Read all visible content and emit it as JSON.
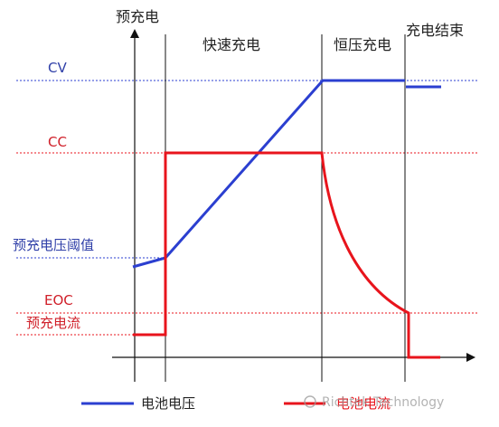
{
  "phases": {
    "precharge": "预充电",
    "fast_charge": "快速充电",
    "constant_voltage": "恒压充电",
    "charge_end": "充电结束"
  },
  "levels": {
    "cv": "CV",
    "cc": "CC",
    "precharge_voltage_threshold": "预充电压阈值",
    "eoc": "EOC",
    "precharge_current": "预充电流"
  },
  "legend": {
    "voltage": "电池电压",
    "current": "电池电流"
  },
  "watermark": "Richtek Technology",
  "colors": {
    "voltage": "#2b3fd0",
    "current": "#e8141c",
    "blue_label": "#2f3fa8",
    "red_label": "#d0202a",
    "axis": "#111111"
  }
}
